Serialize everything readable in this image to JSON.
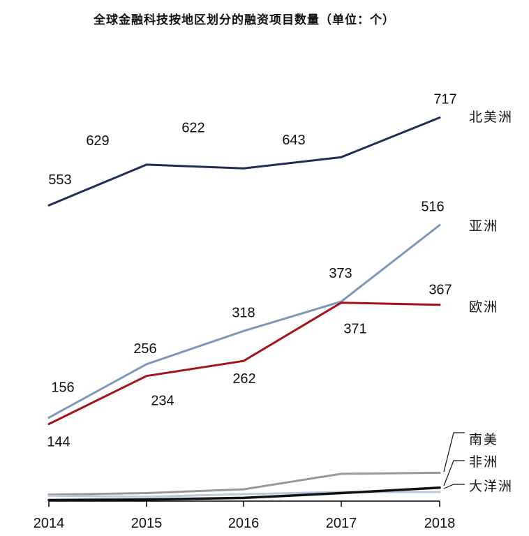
{
  "chart_data": {
    "type": "line",
    "title": "全球金融科技按地区划分的融资项目数量（单位：个）",
    "categories": [
      "2014",
      "2015",
      "2016",
      "2017",
      "2018"
    ],
    "xlabel": "",
    "ylabel": "",
    "ylim": [
      0,
      760
    ],
    "grid": false,
    "legend_placement": "right",
    "series": [
      {
        "name": "北美洲",
        "color": "#1f2d54",
        "width": 3,
        "values": [
          553,
          629,
          622,
          643,
          717
        ],
        "labels": [
          "553",
          "629",
          "622",
          "643",
          "717"
        ]
      },
      {
        "name": "亚洲",
        "color": "#7e98b8",
        "width": 3,
        "values": [
          156,
          256,
          318,
          373,
          516
        ],
        "labels": [
          "156",
          "256",
          "318",
          "373",
          "516"
        ]
      },
      {
        "name": "欧洲",
        "color": "#a5121c",
        "width": 3,
        "values": [
          144,
          234,
          262,
          371,
          367
        ],
        "labels": [
          "144",
          "234",
          "262",
          "371",
          "367"
        ]
      },
      {
        "name": "南美",
        "color": "#999999",
        "width": 3,
        "values": [
          12,
          15,
          22,
          51,
          53
        ],
        "labels": []
      },
      {
        "name": "非洲",
        "color": "#b9c9dc",
        "width": 3,
        "values": [
          10,
          8,
          13,
          17,
          17
        ],
        "labels": []
      },
      {
        "name": "大洋洲",
        "color": "#111111",
        "width": 3.5,
        "values": [
          2,
          3,
          6,
          15,
          25
        ],
        "labels": []
      }
    ]
  }
}
